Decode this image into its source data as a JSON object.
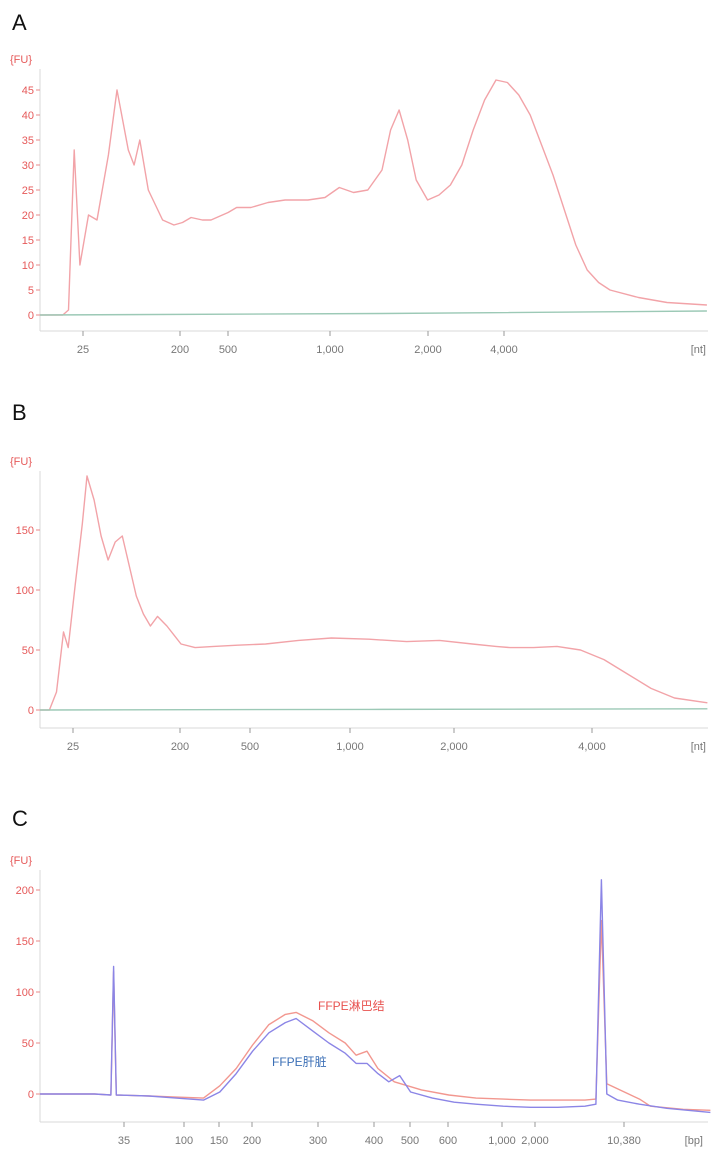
{
  "chart_data": [
    {
      "panel": "A",
      "type": "line",
      "ylabel": "{FU}",
      "xunit": "[nt]",
      "yticks": [
        0,
        5,
        10,
        15,
        20,
        25,
        30,
        35,
        40,
        45
      ],
      "ylim": [
        0,
        50
      ],
      "xtick_labels": [
        "25",
        "200",
        "500",
        "1,000",
        "2,000",
        "4,000"
      ],
      "series": [
        {
          "color": "#f2a3a8",
          "points": [
            [
              0,
              0
            ],
            [
              0.04,
              0
            ],
            [
              0.05,
              1
            ],
            [
              0.06,
              33
            ],
            [
              0.07,
              10
            ],
            [
              0.085,
              20
            ],
            [
              0.1,
              19
            ],
            [
              0.12,
              32
            ],
            [
              0.135,
              45
            ],
            [
              0.155,
              33
            ],
            [
              0.165,
              30
            ],
            [
              0.175,
              35
            ],
            [
              0.19,
              25
            ],
            [
              0.215,
              19
            ],
            [
              0.235,
              18
            ],
            [
              0.25,
              18.5
            ],
            [
              0.265,
              19.5
            ],
            [
              0.285,
              19
            ],
            [
              0.3,
              19
            ],
            [
              0.33,
              20.5
            ],
            [
              0.345,
              21.5
            ],
            [
              0.37,
              21.5
            ],
            [
              0.4,
              22.5
            ],
            [
              0.43,
              23
            ],
            [
              0.47,
              23
            ],
            [
              0.5,
              23.5
            ],
            [
              0.525,
              25.5
            ],
            [
              0.55,
              24.5
            ],
            [
              0.575,
              25
            ],
            [
              0.6,
              29
            ],
            [
              0.615,
              37
            ],
            [
              0.63,
              41
            ],
            [
              0.645,
              35
            ],
            [
              0.66,
              27
            ],
            [
              0.68,
              23
            ],
            [
              0.7,
              24
            ],
            [
              0.72,
              26
            ],
            [
              0.74,
              30
            ],
            [
              0.76,
              37
            ],
            [
              0.78,
              43
            ],
            [
              0.8,
              47
            ],
            [
              0.82,
              46.5
            ],
            [
              0.84,
              44
            ],
            [
              0.86,
              40
            ],
            [
              0.88,
              34
            ],
            [
              0.9,
              28
            ],
            [
              0.92,
              21
            ],
            [
              0.94,
              14
            ],
            [
              0.96,
              9
            ],
            [
              0.98,
              6.5
            ],
            [
              1.0,
              5
            ],
            [
              1.05,
              3.5
            ],
            [
              1.1,
              2.5
            ],
            [
              1.17,
              2
            ]
          ]
        },
        {
          "color": "#9cc9b6",
          "points": [
            [
              0,
              0
            ],
            [
              0.6,
              0.3
            ],
            [
              1.17,
              0.8
            ]
          ]
        }
      ]
    },
    {
      "panel": "B",
      "type": "line",
      "ylabel": "{FU}",
      "xunit": "[nt]",
      "yticks": [
        0,
        50,
        100,
        150
      ],
      "ylim": [
        0,
        200
      ],
      "xtick_labels": [
        "25",
        "200",
        "500",
        "1,000",
        "2,000",
        "4,000"
      ],
      "series": [
        {
          "color": "#f2a3a8",
          "points": [
            [
              0,
              0
            ],
            [
              0.02,
              0
            ],
            [
              0.035,
              15
            ],
            [
              0.05,
              65
            ],
            [
              0.06,
              52
            ],
            [
              0.075,
              105
            ],
            [
              0.09,
              155
            ],
            [
              0.1,
              195
            ],
            [
              0.115,
              175
            ],
            [
              0.13,
              145
            ],
            [
              0.145,
              125
            ],
            [
              0.16,
              140
            ],
            [
              0.175,
              145
            ],
            [
              0.19,
              120
            ],
            [
              0.205,
              95
            ],
            [
              0.22,
              80
            ],
            [
              0.235,
              70
            ],
            [
              0.25,
              78
            ],
            [
              0.27,
              70
            ],
            [
              0.3,
              55
            ],
            [
              0.33,
              52
            ],
            [
              0.37,
              53
            ],
            [
              0.42,
              54
            ],
            [
              0.48,
              55
            ],
            [
              0.55,
              58
            ],
            [
              0.62,
              60
            ],
            [
              0.7,
              59
            ],
            [
              0.78,
              57
            ],
            [
              0.85,
              58
            ],
            [
              0.92,
              55
            ],
            [
              0.97,
              53
            ],
            [
              1.0,
              52
            ],
            [
              1.05,
              52
            ],
            [
              1.1,
              53
            ],
            [
              1.15,
              50
            ],
            [
              1.2,
              42
            ],
            [
              1.25,
              30
            ],
            [
              1.3,
              18
            ],
            [
              1.35,
              10
            ],
            [
              1.42,
              6
            ]
          ]
        },
        {
          "color": "#9cc9b6",
          "points": [
            [
              0,
              0
            ],
            [
              0.7,
              0.5
            ],
            [
              1.42,
              1
            ]
          ]
        }
      ]
    },
    {
      "panel": "C",
      "type": "line",
      "ylabel": "{FU}",
      "xunit": "[bp]",
      "yticks": [
        0,
        50,
        100,
        150,
        200
      ],
      "ylim": [
        -20,
        220
      ],
      "xtick_labels": [
        "35",
        "100",
        "150",
        "200",
        "300",
        "400",
        "500",
        "600",
        "1,000",
        "2,000",
        "10,380"
      ],
      "annotations": [
        {
          "text": "FFPE淋巴结",
          "color": "#e8524f"
        },
        {
          "text": "FFPE肝脏",
          "color": "#3b6fb6"
        }
      ],
      "series": [
        {
          "name": "FFPE淋巴结",
          "color": "#f2978f",
          "points": [
            [
              0,
              0
            ],
            [
              0.1,
              0
            ],
            [
              0.13,
              -1
            ],
            [
              0.135,
              120
            ],
            [
              0.14,
              -1
            ],
            [
              0.2,
              -2
            ],
            [
              0.25,
              -3
            ],
            [
              0.3,
              -4
            ],
            [
              0.33,
              8
            ],
            [
              0.36,
              25
            ],
            [
              0.39,
              48
            ],
            [
              0.42,
              68
            ],
            [
              0.45,
              78
            ],
            [
              0.47,
              80
            ],
            [
              0.5,
              72
            ],
            [
              0.53,
              60
            ],
            [
              0.56,
              50
            ],
            [
              0.58,
              38
            ],
            [
              0.6,
              42
            ],
            [
              0.62,
              25
            ],
            [
              0.65,
              12
            ],
            [
              0.7,
              4
            ],
            [
              0.75,
              -1
            ],
            [
              0.8,
              -4
            ],
            [
              0.85,
              -5
            ],
            [
              0.9,
              -6
            ],
            [
              0.95,
              -6
            ],
            [
              1.0,
              -6
            ],
            [
              1.02,
              -5
            ],
            [
              1.03,
              170
            ],
            [
              1.04,
              10
            ],
            [
              1.06,
              5
            ],
            [
              1.08,
              0
            ],
            [
              1.1,
              -5
            ],
            [
              1.12,
              -12
            ],
            [
              1.18,
              -15
            ],
            [
              1.23,
              -16
            ]
          ]
        },
        {
          "name": "FFPE肝脏",
          "color": "#8b85e6",
          "points": [
            [
              0,
              0
            ],
            [
              0.1,
              0
            ],
            [
              0.13,
              -1
            ],
            [
              0.135,
              125
            ],
            [
              0.14,
              -1
            ],
            [
              0.2,
              -2
            ],
            [
              0.25,
              -4
            ],
            [
              0.3,
              -6
            ],
            [
              0.33,
              2
            ],
            [
              0.36,
              20
            ],
            [
              0.39,
              42
            ],
            [
              0.42,
              60
            ],
            [
              0.45,
              70
            ],
            [
              0.47,
              74
            ],
            [
              0.5,
              62
            ],
            [
              0.53,
              50
            ],
            [
              0.56,
              40
            ],
            [
              0.58,
              30
            ],
            [
              0.6,
              30
            ],
            [
              0.62,
              20
            ],
            [
              0.64,
              12
            ],
            [
              0.66,
              18
            ],
            [
              0.68,
              2
            ],
            [
              0.72,
              -4
            ],
            [
              0.76,
              -8
            ],
            [
              0.8,
              -10
            ],
            [
              0.85,
              -12
            ],
            [
              0.9,
              -13
            ],
            [
              0.95,
              -13
            ],
            [
              1.0,
              -12
            ],
            [
              1.02,
              -10
            ],
            [
              1.03,
              210
            ],
            [
              1.04,
              0
            ],
            [
              1.06,
              -6
            ],
            [
              1.1,
              -10
            ],
            [
              1.15,
              -14
            ],
            [
              1.23,
              -18
            ]
          ]
        }
      ]
    }
  ]
}
